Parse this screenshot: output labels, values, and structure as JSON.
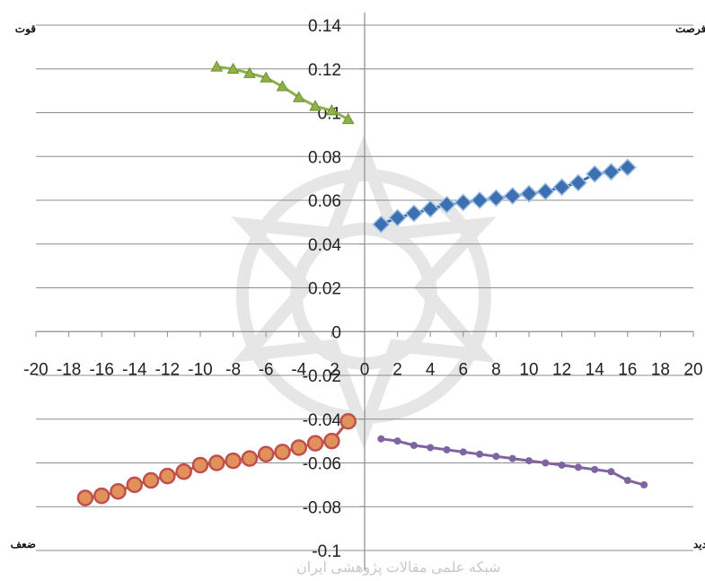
{
  "chart_data": {
    "type": "scatter",
    "xlim": [
      -20,
      20
    ],
    "ylim": [
      -0.1,
      0.14
    ],
    "x_ticks": [
      -20,
      -18,
      -16,
      -14,
      -12,
      -10,
      -8,
      -6,
      -4,
      -2,
      0,
      2,
      4,
      6,
      8,
      10,
      12,
      14,
      16,
      18,
      20
    ],
    "x_tick_labels": [
      "-20",
      "-18",
      "-16",
      "-14",
      "-12",
      "-10",
      "-8",
      "-6",
      "-4",
      "-2",
      "0",
      "2",
      "4",
      "6",
      "8",
      "10",
      "12",
      "14",
      "16",
      "18",
      "20"
    ],
    "y_ticks": [
      -0.1,
      -0.08,
      -0.06,
      -0.04,
      -0.02,
      0,
      0.02,
      0.04,
      0.06,
      0.08,
      0.1,
      0.12,
      0.14
    ],
    "y_tick_labels": [
      "-0.1",
      "-0.08",
      "-0.06",
      "-0.04",
      "-0.02",
      "0",
      "0.02",
      "0.04",
      "0.06",
      "0.08",
      "0.1",
      "0.12",
      "0.14"
    ],
    "grid": "horizontal",
    "quadrant_labels": {
      "top_left": "قوت",
      "top_right": "فرصت",
      "bottom_left": "ضعف",
      "bottom_right": "تهدید"
    },
    "series": [
      {
        "color": "#8fb04a",
        "marker": "triangle",
        "x": [
          -9,
          -8,
          -7,
          -6,
          -5,
          -4,
          -3,
          -2,
          -1
        ],
        "y": [
          0.121,
          0.12,
          0.118,
          0.116,
          0.112,
          0.107,
          0.103,
          0.101,
          0.097
        ]
      },
      {
        "color": "#3e6fb0",
        "marker": "diamond",
        "x": [
          1,
          2,
          3,
          4,
          5,
          6,
          7,
          8,
          9,
          10,
          11,
          12,
          13,
          14,
          15,
          16
        ],
        "y": [
          0.049,
          0.052,
          0.054,
          0.056,
          0.058,
          0.059,
          0.06,
          0.061,
          0.062,
          0.063,
          0.064,
          0.066,
          0.068,
          0.072,
          0.073,
          0.075
        ]
      },
      {
        "color": "#c0504d",
        "marker": "circle",
        "x": [
          -17,
          -16,
          -15,
          -14,
          -13,
          -12,
          -11,
          -10,
          -9,
          -8,
          -7,
          -6,
          -5,
          -4,
          -3,
          -2,
          -1
        ],
        "y": [
          -0.076,
          -0.075,
          -0.073,
          -0.07,
          -0.068,
          -0.066,
          -0.064,
          -0.061,
          -0.06,
          -0.059,
          -0.058,
          -0.056,
          -0.055,
          -0.053,
          -0.051,
          -0.05,
          -0.041
        ]
      },
      {
        "color": "#8064a2",
        "marker": "dot",
        "x": [
          1,
          2,
          3,
          4,
          5,
          6,
          7,
          8,
          9,
          10,
          11,
          12,
          13,
          14,
          15,
          16,
          17
        ],
        "y": [
          -0.049,
          -0.05,
          -0.052,
          -0.053,
          -0.054,
          -0.055,
          -0.056,
          -0.057,
          -0.058,
          -0.059,
          -0.06,
          -0.061,
          -0.062,
          -0.063,
          -0.064,
          -0.068,
          -0.07
        ]
      }
    ]
  }
}
